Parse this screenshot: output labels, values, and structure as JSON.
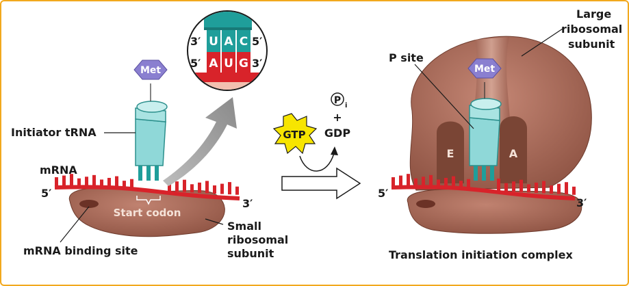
{
  "left_panel": {
    "met": "Met",
    "initiator_trna": "Initiator tRNA",
    "mrna": "mRNA",
    "five_prime": "5′",
    "three_prime": "3′",
    "start_codon": "Start codon",
    "mrna_binding_site": "mRNA binding site",
    "small_subunit": [
      "Small",
      "ribosomal",
      "subunit"
    ]
  },
  "inset": {
    "top_five": "3′",
    "top_three": "5′",
    "bottom_five": "5′",
    "bottom_three": "3′",
    "anticodon": [
      "U",
      "A",
      "C"
    ],
    "codon": [
      "A",
      "U",
      "G"
    ]
  },
  "reaction": {
    "gtp": "GTP",
    "pi": "P",
    "pi_sub": "i",
    "plus": "+",
    "gdp": "GDP"
  },
  "right_panel": {
    "met": "Met",
    "p_site": "P site",
    "large_subunit": [
      "Large",
      "ribosomal",
      "subunit"
    ],
    "e_site": "E",
    "a_site": "A",
    "five_prime": "5′",
    "three_prime": "3′",
    "caption": "Translation initiation complex"
  },
  "colors": {
    "ribosome": "#a8695a",
    "ribosome_dark": "#7a4535",
    "trna": "#8fd8d8",
    "trna_stem": "#1f9e9a",
    "mrna": "#d8232a",
    "met": "#8a7fd0",
    "gtp": "#f7e500",
    "border": "#f2a81d"
  }
}
